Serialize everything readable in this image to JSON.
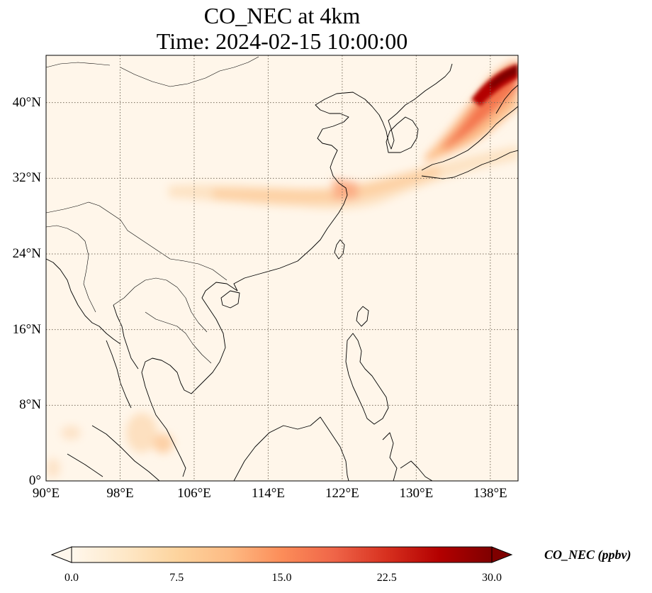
{
  "title_line1": "CO_NEC at 4km",
  "title_line2": "Time: 2024-02-15 10:00:00",
  "map": {
    "lon_range": [
      90,
      141
    ],
    "lat_range": [
      0,
      45
    ],
    "lon_ticks": [
      {
        "value": 90,
        "label": "90°E"
      },
      {
        "value": 98,
        "label": "98°E"
      },
      {
        "value": 106,
        "label": "106°E"
      },
      {
        "value": 114,
        "label": "114°E"
      },
      {
        "value": 122,
        "label": "122°E"
      },
      {
        "value": 130,
        "label": "130°E"
      },
      {
        "value": 138,
        "label": "138°E"
      }
    ],
    "lat_ticks": [
      {
        "value": 0,
        "label": "0°"
      },
      {
        "value": 8,
        "label": "8°N"
      },
      {
        "value": 16,
        "label": "16°N"
      },
      {
        "value": 24,
        "label": "24°N"
      },
      {
        "value": 32,
        "label": "32°N"
      },
      {
        "value": 40,
        "label": "40°N"
      }
    ],
    "gridlines": true
  },
  "colorbar": {
    "label": "CO_NEC (ppbv)",
    "colormap": "OrRd",
    "range": [
      0,
      30
    ],
    "extend": "both",
    "ticks": [
      {
        "value": 0,
        "label": "0.0"
      },
      {
        "value": 7.5,
        "label": "7.5"
      },
      {
        "value": 15,
        "label": "15.0"
      },
      {
        "value": 22.5,
        "label": "22.5"
      },
      {
        "value": 30,
        "label": "30.0"
      }
    ],
    "colors": [
      "#fff7ec",
      "#fee8c8",
      "#fdd49e",
      "#fdbb84",
      "#fc8d59",
      "#ef6548",
      "#d7301f",
      "#b30000",
      "#7f0000"
    ]
  },
  "plumes": [
    {
      "name": "northeast-asia-plume",
      "lon": [
        126,
        141
      ],
      "lat": [
        33,
        44.5
      ],
      "max_value": 30
    },
    {
      "name": "east-china-plume",
      "lon": [
        104,
        140
      ],
      "lat": [
        28,
        34
      ],
      "max_value": 14
    },
    {
      "name": "indochina-low-plume",
      "lon": [
        98,
        104
      ],
      "lat": [
        2,
        7
      ],
      "max_value": 6
    }
  ]
}
